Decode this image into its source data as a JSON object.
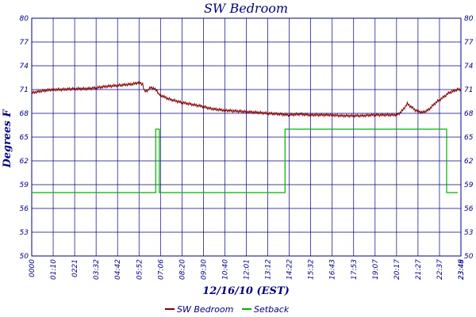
{
  "chart_data": {
    "type": "line",
    "title": "SW Bedroom",
    "xlabel": "12/16/10 (EST)",
    "ylabel": "Degrees F",
    "ylim": [
      50,
      80
    ],
    "y_ticks": [
      "80",
      "77",
      "74",
      "71",
      "68",
      "65",
      "62",
      "59",
      "56",
      "53",
      "50"
    ],
    "x_ticks": [
      "0000",
      "01:10",
      "0221",
      "03:32",
      "04:42",
      "05:52",
      "07:06",
      "08:20",
      "09:30",
      "10:40",
      "12:01",
      "13:12",
      "14:22",
      "15:32",
      "16:43",
      "17:53",
      "19:07",
      "20:17",
      "21:27",
      "22:37",
      "23:48",
      "23:49"
    ],
    "grid": true,
    "legend_position": "bottom-center",
    "colors": {
      "axis": "#000080",
      "grid": "#000080",
      "SW Bedroom": "#800000",
      "Setback": "#00b000"
    },
    "series": [
      {
        "name": "SW Bedroom",
        "x": [
          "00:00",
          "00:30",
          "01:10",
          "01:40",
          "02:21",
          "03:00",
          "03:32",
          "04:10",
          "04:42",
          "05:10",
          "05:40",
          "06:00",
          "06:12",
          "06:18",
          "06:30",
          "06:40",
          "07:00",
          "07:06",
          "07:40",
          "08:20",
          "09:00",
          "09:30",
          "10:00",
          "10:40",
          "11:20",
          "12:01",
          "12:40",
          "13:12",
          "13:50",
          "14:22",
          "15:00",
          "15:32",
          "16:10",
          "16:43",
          "17:20",
          "17:53",
          "18:30",
          "19:07",
          "19:40",
          "20:17",
          "20:30",
          "20:45",
          "21:00",
          "21:27",
          "21:50",
          "22:10",
          "22:37",
          "23:00",
          "23:20",
          "23:48"
        ],
        "y": [
          70.6,
          70.8,
          71.0,
          71.0,
          71.1,
          71.1,
          71.2,
          71.4,
          71.5,
          71.6,
          71.7,
          71.9,
          71.7,
          70.8,
          70.9,
          71.3,
          70.9,
          70.4,
          69.8,
          69.4,
          69.1,
          68.9,
          68.6,
          68.4,
          68.3,
          68.2,
          68.1,
          68.0,
          67.9,
          67.8,
          67.9,
          67.8,
          67.8,
          67.8,
          67.7,
          67.7,
          67.7,
          67.8,
          67.8,
          67.8,
          67.9,
          68.4,
          69.2,
          68.4,
          68.1,
          68.4,
          69.4,
          70.0,
          70.6,
          71.0
        ]
      },
      {
        "name": "Setback",
        "x": [
          "00:00",
          "06:56",
          "06:56",
          "07:08",
          "07:08",
          "14:10",
          "14:10",
          "23:12",
          "23:12",
          "23:49"
        ],
        "y": [
          58,
          58,
          66,
          66,
          58,
          58,
          66,
          66,
          58,
          58
        ]
      }
    ]
  }
}
